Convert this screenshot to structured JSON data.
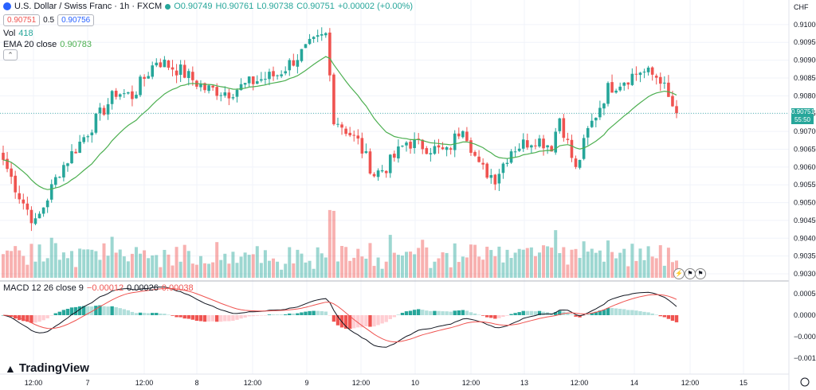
{
  "header": {
    "symbol": "U.S. Dollar / Swiss Franc · 1h · FXCM",
    "ohlc_o": "O0.90749",
    "ohlc_h": "H0.90761",
    "ohlc_l": "L0.90738",
    "ohlc_c": "C0.90751",
    "ohlc_chg": "+0.00002 (+0.00%)",
    "sell_price": "0.90751",
    "spread": "0.5",
    "buy_price": "0.90756",
    "vol_label": "Vol",
    "vol_value": "418",
    "ema_label": "EMA 20 close",
    "ema_value": "0.90783",
    "macd_label": "MACD 12 26 close 9",
    "macd_v1": "−0.00012",
    "macd_v2": "0.00026",
    "macd_v3": "0.00038",
    "currency": "CHF",
    "current_price": "0.90751",
    "countdown": "55:50",
    "brand": "TradingView"
  },
  "colors": {
    "up": "#26a69a",
    "down": "#ef5350",
    "ema": "#4caf50",
    "macd": "#131722",
    "signal": "#ef5350"
  },
  "chart_data": {
    "type": "candlestick",
    "y_ticks": [
      "0.91000",
      "0.90950",
      "0.90900",
      "0.90850",
      "0.90800",
      "0.90750",
      "0.90700",
      "0.90650",
      "0.90600",
      "0.90550",
      "0.90500",
      "0.90450",
      "0.90400",
      "0.90350",
      "0.90300"
    ],
    "macd_ticks": [
      "0.00050",
      "0.00000",
      "−0.00050",
      "−0.00100"
    ],
    "x_ticks": [
      "12:00",
      "7",
      "12:00",
      "8",
      "12:00",
      "9",
      "12:00",
      "10",
      "12:00",
      "13",
      "12:00",
      "14",
      "12:00",
      "15"
    ],
    "ylim": [
      0.9028,
      0.9106
    ],
    "anchors": [
      {
        "i": 0,
        "p": 0.9062
      },
      {
        "i": 4,
        "p": 0.9052
      },
      {
        "i": 8,
        "p": 0.9044
      },
      {
        "i": 14,
        "p": 0.9059
      },
      {
        "i": 28,
        "p": 0.9081
      },
      {
        "i": 32,
        "p": 0.908
      },
      {
        "i": 38,
        "p": 0.909
      },
      {
        "i": 44,
        "p": 0.9087
      },
      {
        "i": 50,
        "p": 0.9082
      },
      {
        "i": 56,
        "p": 0.9081
      },
      {
        "i": 62,
        "p": 0.9084
      },
      {
        "i": 68,
        "p": 0.9086
      },
      {
        "i": 76,
        "p": 0.9094
      },
      {
        "i": 80,
        "p": 0.9097
      },
      {
        "i": 82,
        "p": 0.9074
      },
      {
        "i": 88,
        "p": 0.9067
      },
      {
        "i": 92,
        "p": 0.9058
      },
      {
        "i": 95,
        "p": 0.906
      },
      {
        "i": 100,
        "p": 0.9067
      },
      {
        "i": 104,
        "p": 0.9066
      },
      {
        "i": 110,
        "p": 0.9064
      },
      {
        "i": 114,
        "p": 0.9072
      },
      {
        "i": 118,
        "p": 0.906
      },
      {
        "i": 122,
        "p": 0.9057
      },
      {
        "i": 126,
        "p": 0.9065
      },
      {
        "i": 132,
        "p": 0.9068
      },
      {
        "i": 136,
        "p": 0.9066
      },
      {
        "i": 138,
        "p": 0.9074
      },
      {
        "i": 142,
        "p": 0.9059
      },
      {
        "i": 145,
        "p": 0.907
      },
      {
        "i": 150,
        "p": 0.9082
      },
      {
        "i": 158,
        "p": 0.9087
      },
      {
        "i": 163,
        "p": 0.9085
      },
      {
        "i": 165,
        "p": 0.9079
      },
      {
        "i": 167,
        "p": 0.90751
      }
    ],
    "volume_range": [
      0,
      1200
    ],
    "macd_range": [
      -0.0013,
      0.0007
    ]
  }
}
